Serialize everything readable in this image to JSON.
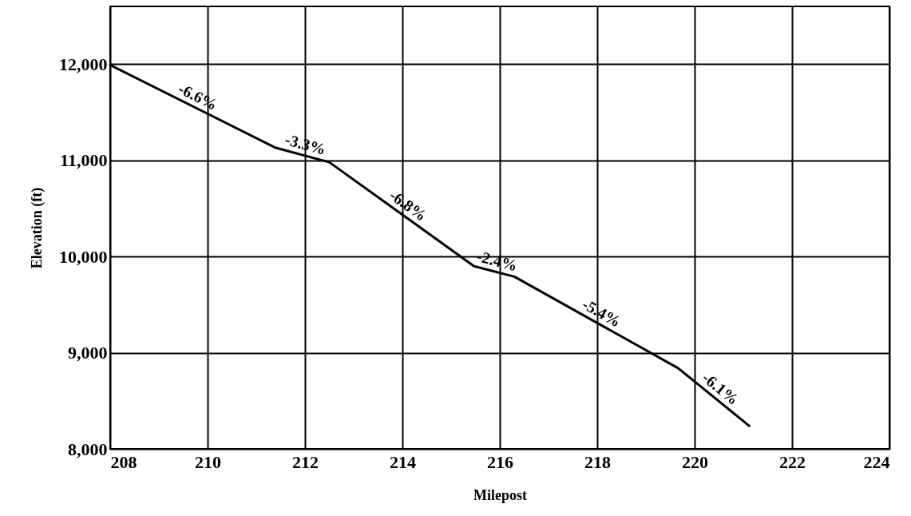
{
  "chart_data": {
    "type": "line",
    "xlabel": "Milepost",
    "ylabel": "Elevation (ft)",
    "x": [
      208,
      211.4,
      212.5,
      215.47,
      216.3,
      219.66,
      221.12
    ],
    "series": [
      {
        "color": "#000000",
        "values": [
          11990,
          11130,
          10980,
          9900,
          9790,
          8840,
          8240
        ]
      }
    ],
    "xlim": [
      208,
      224
    ],
    "xticks": [
      208,
      210,
      212,
      214,
      216,
      218,
      220,
      222,
      224
    ],
    "ylim": [
      8000,
      12600
    ],
    "yticks": [
      {
        "value": 8000,
        "label": "8,000"
      },
      {
        "value": 9000,
        "label": "9,000"
      },
      {
        "value": 10000,
        "label": "10,000"
      },
      {
        "value": 11000,
        "label": "11,000"
      },
      {
        "value": 12000,
        "label": "12,000"
      }
    ],
    "grid": true,
    "marker": "none",
    "line_style": "solid",
    "annotations": [
      "-6.6%",
      "-3.3%",
      "-6.8%",
      "-2.4%",
      "-5.4%",
      "-6.1%"
    ]
  }
}
